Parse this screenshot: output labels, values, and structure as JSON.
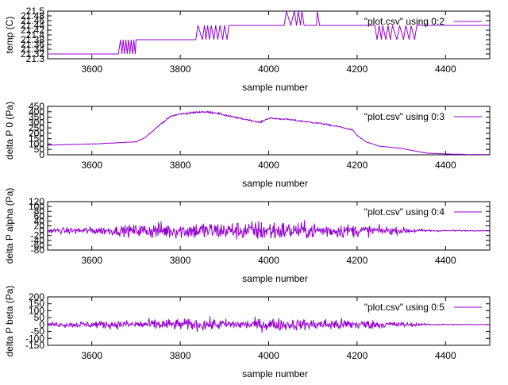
{
  "chart_data": [
    {
      "type": "line",
      "xlabel": "sample number",
      "ylabel": "temp (C)",
      "xlim": [
        3500,
        4500
      ],
      "ylim": [
        21.3,
        21.5
      ],
      "xticks": [
        "3600",
        "3800",
        "4000",
        "4200",
        "4400"
      ],
      "yticks": [
        "21.3",
        "21.32",
        "21.34",
        "21.36",
        "21.38",
        "21.4",
        "21.42",
        "21.44",
        "21.46",
        "21.48",
        "21.5"
      ],
      "legend_position": "top-right",
      "series": [
        {
          "name": "\"plot.csv\" using 0:2",
          "color": "#9400d3",
          "points": [
            [
              3500,
              21.32
            ],
            [
              3660,
              21.32
            ],
            [
              3665,
              21.38
            ],
            [
              3668,
              21.32
            ],
            [
              3671,
              21.38
            ],
            [
              3674,
              21.32
            ],
            [
              3677,
              21.38
            ],
            [
              3680,
              21.32
            ],
            [
              3683,
              21.38
            ],
            [
              3686,
              21.32
            ],
            [
              3689,
              21.38
            ],
            [
              3692,
              21.32
            ],
            [
              3695,
              21.38
            ],
            [
              3698,
              21.32
            ],
            [
              3700,
              21.38
            ],
            [
              3835,
              21.38
            ],
            [
              3840,
              21.44
            ],
            [
              3850,
              21.38
            ],
            [
              3855,
              21.44
            ],
            [
              3858,
              21.38
            ],
            [
              3862,
              21.44
            ],
            [
              3866,
              21.38
            ],
            [
              3870,
              21.44
            ],
            [
              3876,
              21.38
            ],
            [
              3880,
              21.44
            ],
            [
              3885,
              21.38
            ],
            [
              3890,
              21.44
            ],
            [
              3896,
              21.38
            ],
            [
              3900,
              21.44
            ],
            [
              3906,
              21.38
            ],
            [
              3910,
              21.44
            ],
            [
              3915,
              21.44
            ],
            [
              4035,
              21.44
            ],
            [
              4040,
              21.5
            ],
            [
              4050,
              21.44
            ],
            [
              4058,
              21.5
            ],
            [
              4063,
              21.44
            ],
            [
              4067,
              21.5
            ],
            [
              4072,
              21.44
            ],
            [
              4075,
              21.5
            ],
            [
              4080,
              21.44
            ],
            [
              4090,
              21.44
            ],
            [
              4108,
              21.44
            ],
            [
              4110,
              21.5
            ],
            [
              4115,
              21.44
            ],
            [
              4240,
              21.44
            ],
            [
              4245,
              21.38
            ],
            [
              4250,
              21.44
            ],
            [
              4255,
              21.38
            ],
            [
              4258,
              21.44
            ],
            [
              4265,
              21.38
            ],
            [
              4270,
              21.44
            ],
            [
              4275,
              21.38
            ],
            [
              4280,
              21.44
            ],
            [
              4290,
              21.38
            ],
            [
              4296,
              21.44
            ],
            [
              4305,
              21.38
            ],
            [
              4310,
              21.44
            ],
            [
              4318,
              21.38
            ],
            [
              4322,
              21.44
            ],
            [
              4330,
              21.38
            ],
            [
              4335,
              21.44
            ],
            [
              4500,
              21.44
            ]
          ]
        }
      ]
    },
    {
      "type": "line",
      "xlabel": "sample number",
      "ylabel": "delta P 0 (Pa)",
      "xlim": [
        3500,
        4500
      ],
      "ylim": [
        0,
        450
      ],
      "xticks": [
        "3600",
        "3800",
        "4000",
        "4200",
        "4400"
      ],
      "yticks": [
        "0",
        "50",
        "100",
        "150",
        "200",
        "250",
        "300",
        "350",
        "400",
        "450"
      ],
      "legend_position": "top-right",
      "series": [
        {
          "name": "\"plot.csv\" using 0:3",
          "color": "#9400d3",
          "points": [
            [
              3500,
              90
            ],
            [
              3550,
              95
            ],
            [
              3600,
              100
            ],
            [
              3650,
              110
            ],
            [
              3700,
              120
            ],
            [
              3720,
              160
            ],
            [
              3740,
              230
            ],
            [
              3760,
              300
            ],
            [
              3780,
              360
            ],
            [
              3800,
              380
            ],
            [
              3850,
              400
            ],
            [
              3880,
              390
            ],
            [
              3920,
              350
            ],
            [
              3960,
              320
            ],
            [
              3980,
              300
            ],
            [
              4000,
              340
            ],
            [
              4040,
              330
            ],
            [
              4080,
              310
            ],
            [
              4120,
              290
            ],
            [
              4160,
              260
            ],
            [
              4190,
              230
            ],
            [
              4200,
              180
            ],
            [
              4220,
              120
            ],
            [
              4250,
              80
            ],
            [
              4300,
              60
            ],
            [
              4330,
              35
            ],
            [
              4360,
              15
            ],
            [
              4400,
              8
            ],
            [
              4450,
              3
            ],
            [
              4500,
              2
            ]
          ]
        }
      ]
    },
    {
      "type": "line",
      "xlabel": "sample number",
      "ylabel": "delta P alpha (Pa)",
      "xlim": [
        3500,
        4500
      ],
      "ylim": [
        -80,
        120
      ],
      "xticks": [
        "3600",
        "3800",
        "4000",
        "4200",
        "4400"
      ],
      "yticks": [
        "-80",
        "-60",
        "-40",
        "-20",
        "0",
        "20",
        "40",
        "60",
        "80",
        "100",
        "120"
      ],
      "legend_position": "top-right",
      "series": [
        {
          "name": "\"plot.csv\" using 0:4",
          "color": "#9400d3",
          "envelope": [
            [
              3500,
              15
            ],
            [
              3550,
              20
            ],
            [
              3600,
              25
            ],
            [
              3650,
              30
            ],
            [
              3700,
              40
            ],
            [
              3750,
              55
            ],
            [
              3800,
              50
            ],
            [
              3850,
              60
            ],
            [
              3900,
              55
            ],
            [
              3950,
              60
            ],
            [
              4000,
              70
            ],
            [
              4050,
              55
            ],
            [
              4100,
              50
            ],
            [
              4150,
              45
            ],
            [
              4200,
              40
            ],
            [
              4250,
              30
            ],
            [
              4300,
              20
            ],
            [
              4330,
              15
            ],
            [
              4350,
              8
            ],
            [
              4400,
              5
            ],
            [
              4450,
              3
            ],
            [
              4500,
              2
            ]
          ]
        }
      ]
    },
    {
      "type": "line",
      "xlabel": "sample number",
      "ylabel": "delta P beta (Pa)",
      "xlim": [
        3500,
        4500
      ],
      "ylim": [
        -150,
        200
      ],
      "xticks": [
        "3600",
        "3800",
        "4000",
        "4200",
        "4400"
      ],
      "yticks": [
        "-150",
        "-100",
        "-50",
        "0",
        "50",
        "100",
        "150",
        "200"
      ],
      "legend_position": "top-right",
      "series": [
        {
          "name": "\"plot.csv\" using 0:5",
          "color": "#9400d3",
          "envelope": [
            [
              3500,
              25
            ],
            [
              3550,
              30
            ],
            [
              3600,
              40
            ],
            [
              3650,
              45
            ],
            [
              3700,
              50
            ],
            [
              3750,
              65
            ],
            [
              3800,
              60
            ],
            [
              3850,
              70
            ],
            [
              3900,
              60
            ],
            [
              3950,
              55
            ],
            [
              4000,
              75
            ],
            [
              4050,
              65
            ],
            [
              4100,
              60
            ],
            [
              4150,
              70
            ],
            [
              4200,
              60
            ],
            [
              4250,
              45
            ],
            [
              4300,
              30
            ],
            [
              4330,
              20
            ],
            [
              4350,
              10
            ],
            [
              4400,
              6
            ],
            [
              4450,
              4
            ],
            [
              4500,
              3
            ]
          ]
        }
      ]
    }
  ]
}
